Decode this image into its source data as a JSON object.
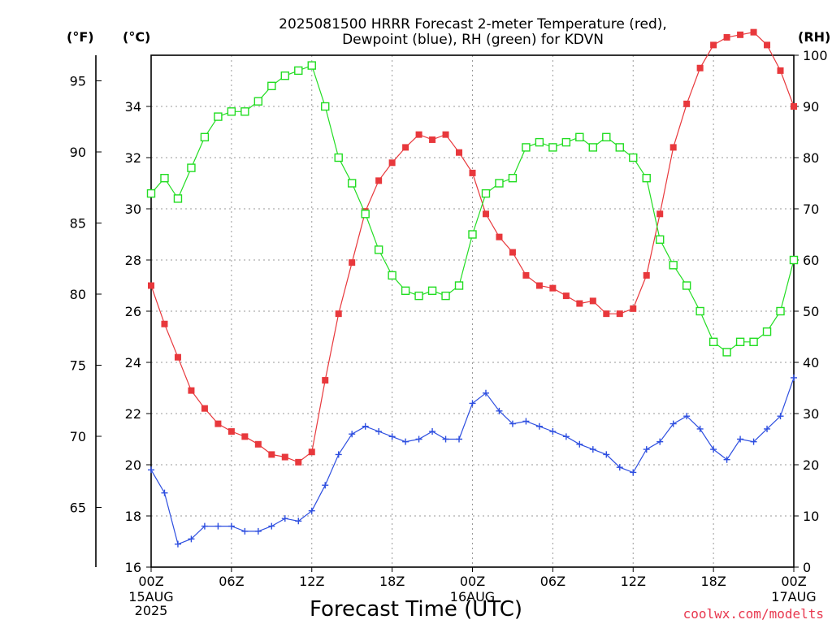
{
  "chart_data": {
    "type": "line",
    "title": [
      "2025081500 HRRR Forecast 2-meter Temperature (red),",
      "Dewpoint (blue), RH (green) for KDVN"
    ],
    "xlabel": "Forecast Time (UTC)",
    "credit": "coolwx.com/modelts",
    "axis_units": {
      "left_outer": "(°F)",
      "left_inner": "(°C)",
      "right": "(RH)"
    },
    "x_range_hours": [
      0,
      48
    ],
    "x_ticks": [
      {
        "hour": 0,
        "label": "00Z",
        "sub": [
          "15AUG",
          "2025"
        ]
      },
      {
        "hour": 6,
        "label": "06Z",
        "sub": []
      },
      {
        "hour": 12,
        "label": "12Z",
        "sub": []
      },
      {
        "hour": 18,
        "label": "18Z",
        "sub": []
      },
      {
        "hour": 24,
        "label": "00Z",
        "sub": [
          "16AUG"
        ]
      },
      {
        "hour": 30,
        "label": "06Z",
        "sub": []
      },
      {
        "hour": 36,
        "label": "12Z",
        "sub": []
      },
      {
        "hour": 42,
        "label": "18Z",
        "sub": []
      },
      {
        "hour": 48,
        "label": "00Z",
        "sub": [
          "17AUG"
        ]
      }
    ],
    "y_celsius": {
      "range": [
        16,
        36
      ],
      "ticks": [
        16,
        18,
        20,
        22,
        24,
        26,
        28,
        30,
        32,
        34
      ]
    },
    "y_fahrenheit": {
      "ticks": [
        65,
        70,
        75,
        80,
        85,
        90,
        95
      ]
    },
    "y_rh": {
      "range": [
        0,
        100
      ],
      "ticks": [
        0,
        10,
        20,
        30,
        40,
        50,
        60,
        70,
        80,
        90,
        100
      ]
    },
    "grid": true,
    "series": [
      {
        "name": "Temperature",
        "axis": "celsius",
        "color": "#e8383c",
        "marker": "filled-square",
        "values": [
          27.0,
          25.5,
          24.2,
          22.9,
          22.2,
          21.6,
          21.3,
          21.1,
          20.8,
          20.4,
          20.3,
          20.1,
          20.5,
          23.3,
          25.9,
          27.9,
          29.9,
          31.1,
          31.8,
          32.4,
          32.9,
          32.7,
          32.9,
          32.2,
          31.4,
          29.8,
          28.9,
          28.3,
          27.4,
          27.0,
          26.9,
          26.6,
          26.3,
          26.4,
          25.9,
          25.9,
          26.1,
          27.4,
          29.8,
          32.4,
          34.1,
          35.5,
          36.4,
          36.7,
          36.8,
          36.9,
          36.4,
          35.4,
          34.0
        ]
      },
      {
        "name": "Dewpoint",
        "axis": "celsius",
        "color": "#2e4fe0",
        "marker": "plus",
        "values": [
          19.8,
          18.9,
          16.9,
          17.1,
          17.6,
          17.6,
          17.6,
          17.4,
          17.4,
          17.6,
          17.9,
          17.8,
          18.2,
          19.2,
          20.4,
          21.2,
          21.5,
          21.3,
          21.1,
          20.9,
          21.0,
          21.3,
          21.0,
          21.0,
          22.4,
          22.8,
          22.1,
          21.6,
          21.7,
          21.5,
          21.3,
          21.1,
          20.8,
          20.6,
          20.4,
          19.9,
          19.7,
          20.6,
          20.9,
          21.6,
          21.9,
          21.4,
          20.6,
          20.2,
          21.0,
          20.9,
          21.4,
          21.9,
          23.4
        ]
      },
      {
        "name": "RH",
        "axis": "rh",
        "color": "#22dd22",
        "marker": "open-square",
        "values": [
          73,
          76,
          72,
          78,
          84,
          88,
          89,
          89,
          91,
          94,
          96,
          97,
          98,
          90,
          80,
          75,
          69,
          62,
          57,
          54,
          53,
          54,
          53,
          55,
          65,
          73,
          75,
          76,
          82,
          83,
          82,
          83,
          84,
          82,
          84,
          82,
          80,
          76,
          64,
          59,
          55,
          50,
          44,
          42,
          44,
          44,
          46,
          50,
          60
        ]
      }
    ]
  }
}
